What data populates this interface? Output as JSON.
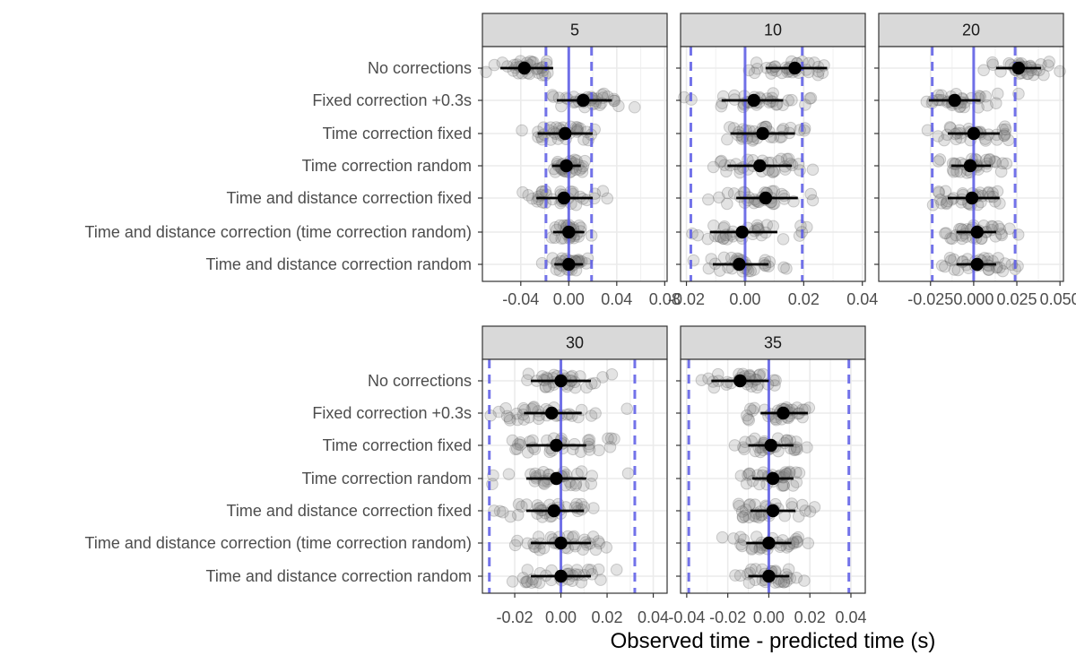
{
  "chart_data": {
    "type": "scatter",
    "xlabel": "Observed time - predicted time (s)",
    "categories": [
      "No corrections",
      "Fixed correction +0.3s",
      "Time correction fixed",
      "Time correction random",
      "Time and distance correction fixed",
      "Time and distance correction (time correction random)",
      "Time and distance correction random"
    ],
    "colors": {
      "reference": "#5a5ae6",
      "point": "#000000",
      "jitter": "#808080",
      "strip": "#d9d9d9"
    },
    "panels": [
      {
        "title": "5",
        "xlim": [
          -0.072,
          0.082
        ],
        "ticks": [
          -0.04,
          0.0,
          0.04,
          0.08
        ],
        "tick_labels": [
          "-0.04",
          "0.00",
          "0.04",
          "0.08"
        ],
        "center_line": 0.0,
        "dashed_lines": [
          -0.019,
          0.019
        ],
        "summary": [
          {
            "mean": -0.037,
            "low": -0.057,
            "high": -0.013
          },
          {
            "mean": 0.012,
            "low": -0.01,
            "high": 0.036
          },
          {
            "mean": -0.003,
            "low": -0.026,
            "high": 0.02
          },
          {
            "mean": -0.002,
            "low": -0.014,
            "high": 0.01
          },
          {
            "mean": -0.004,
            "low": -0.027,
            "high": 0.02
          },
          {
            "mean": 0.0,
            "low": -0.013,
            "high": 0.013
          },
          {
            "mean": 0.0,
            "low": -0.012,
            "high": 0.012
          }
        ],
        "spread": [
          0.018,
          0.022,
          0.018,
          0.01,
          0.018,
          0.009,
          0.009
        ]
      },
      {
        "title": "10",
        "xlim": [
          -0.022,
          0.041
        ],
        "ticks": [
          -0.02,
          0.0,
          0.02,
          0.04
        ],
        "tick_labels": [
          "-0.02",
          "0.00",
          "0.02",
          "0.04"
        ],
        "center_line": 0.0,
        "dashed_lines": [
          -0.0185,
          0.0195
        ],
        "summary": [
          {
            "mean": 0.017,
            "low": 0.007,
            "high": 0.028
          },
          {
            "mean": 0.003,
            "low": -0.008,
            "high": 0.013
          },
          {
            "mean": 0.006,
            "low": -0.005,
            "high": 0.017
          },
          {
            "mean": 0.005,
            "low": -0.006,
            "high": 0.016
          },
          {
            "mean": 0.007,
            "low": -0.003,
            "high": 0.018
          },
          {
            "mean": -0.001,
            "low": -0.012,
            "high": 0.011
          },
          {
            "mean": -0.002,
            "low": -0.011,
            "high": 0.008
          }
        ],
        "spread": [
          0.009,
          0.011,
          0.01,
          0.01,
          0.01,
          0.011,
          0.01
        ]
      },
      {
        "title": "20",
        "xlim": [
          -0.055,
          0.052
        ],
        "ticks": [
          -0.025,
          0.0,
          0.025,
          0.05
        ],
        "tick_labels": [
          "-0.025",
          "0.000",
          "0.025",
          "0.050"
        ],
        "center_line": 0.0,
        "dashed_lines": [
          -0.024,
          0.024
        ],
        "summary": [
          {
            "mean": 0.026,
            "low": 0.013,
            "high": 0.039
          },
          {
            "mean": -0.011,
            "low": -0.026,
            "high": 0.004
          },
          {
            "mean": 0.0,
            "low": -0.015,
            "high": 0.015
          },
          {
            "mean": -0.002,
            "low": -0.013,
            "high": 0.01
          },
          {
            "mean": -0.001,
            "low": -0.015,
            "high": 0.015
          },
          {
            "mean": 0.002,
            "low": -0.01,
            "high": 0.013
          },
          {
            "mean": 0.002,
            "low": -0.01,
            "high": 0.013
          }
        ],
        "spread": [
          0.012,
          0.016,
          0.015,
          0.013,
          0.015,
          0.012,
          0.012
        ]
      },
      {
        "title": "30",
        "xlim": [
          -0.034,
          0.046
        ],
        "ticks": [
          -0.02,
          0.0,
          0.02,
          0.04
        ],
        "tick_labels": [
          "-0.02",
          "0.00",
          "0.02",
          "0.04"
        ],
        "center_line": 0.0,
        "dashed_lines": [
          -0.031,
          0.032
        ],
        "summary": [
          {
            "mean": 0.0,
            "low": -0.013,
            "high": 0.013
          },
          {
            "mean": -0.004,
            "low": -0.016,
            "high": 0.009
          },
          {
            "mean": -0.002,
            "low": -0.015,
            "high": 0.011
          },
          {
            "mean": -0.002,
            "low": -0.015,
            "high": 0.011
          },
          {
            "mean": -0.003,
            "low": -0.015,
            "high": 0.01
          },
          {
            "mean": 0.0,
            "low": -0.013,
            "high": 0.013
          },
          {
            "mean": 0.0,
            "low": -0.013,
            "high": 0.013
          }
        ],
        "spread": [
          0.013,
          0.013,
          0.013,
          0.013,
          0.013,
          0.013,
          0.013
        ]
      },
      {
        "title": "35",
        "xlim": [
          -0.043,
          0.047
        ],
        "ticks": [
          -0.04,
          -0.02,
          0.0,
          0.02,
          0.04
        ],
        "tick_labels": [
          "-0.04",
          "-0.02",
          "0.00",
          "0.02",
          "0.04"
        ],
        "center_line": 0.0,
        "dashed_lines": [
          -0.039,
          0.039
        ],
        "summary": [
          {
            "mean": -0.014,
            "low": -0.028,
            "high": 0.0
          },
          {
            "mean": 0.007,
            "low": -0.004,
            "high": 0.019
          },
          {
            "mean": 0.001,
            "low": -0.01,
            "high": 0.012
          },
          {
            "mean": 0.002,
            "low": -0.008,
            "high": 0.012
          },
          {
            "mean": 0.002,
            "low": -0.009,
            "high": 0.013
          },
          {
            "mean": 0.0,
            "low": -0.011,
            "high": 0.011
          },
          {
            "mean": 0.0,
            "low": -0.01,
            "high": 0.01
          }
        ],
        "spread": [
          0.011,
          0.012,
          0.011,
          0.01,
          0.011,
          0.011,
          0.01
        ]
      }
    ]
  }
}
